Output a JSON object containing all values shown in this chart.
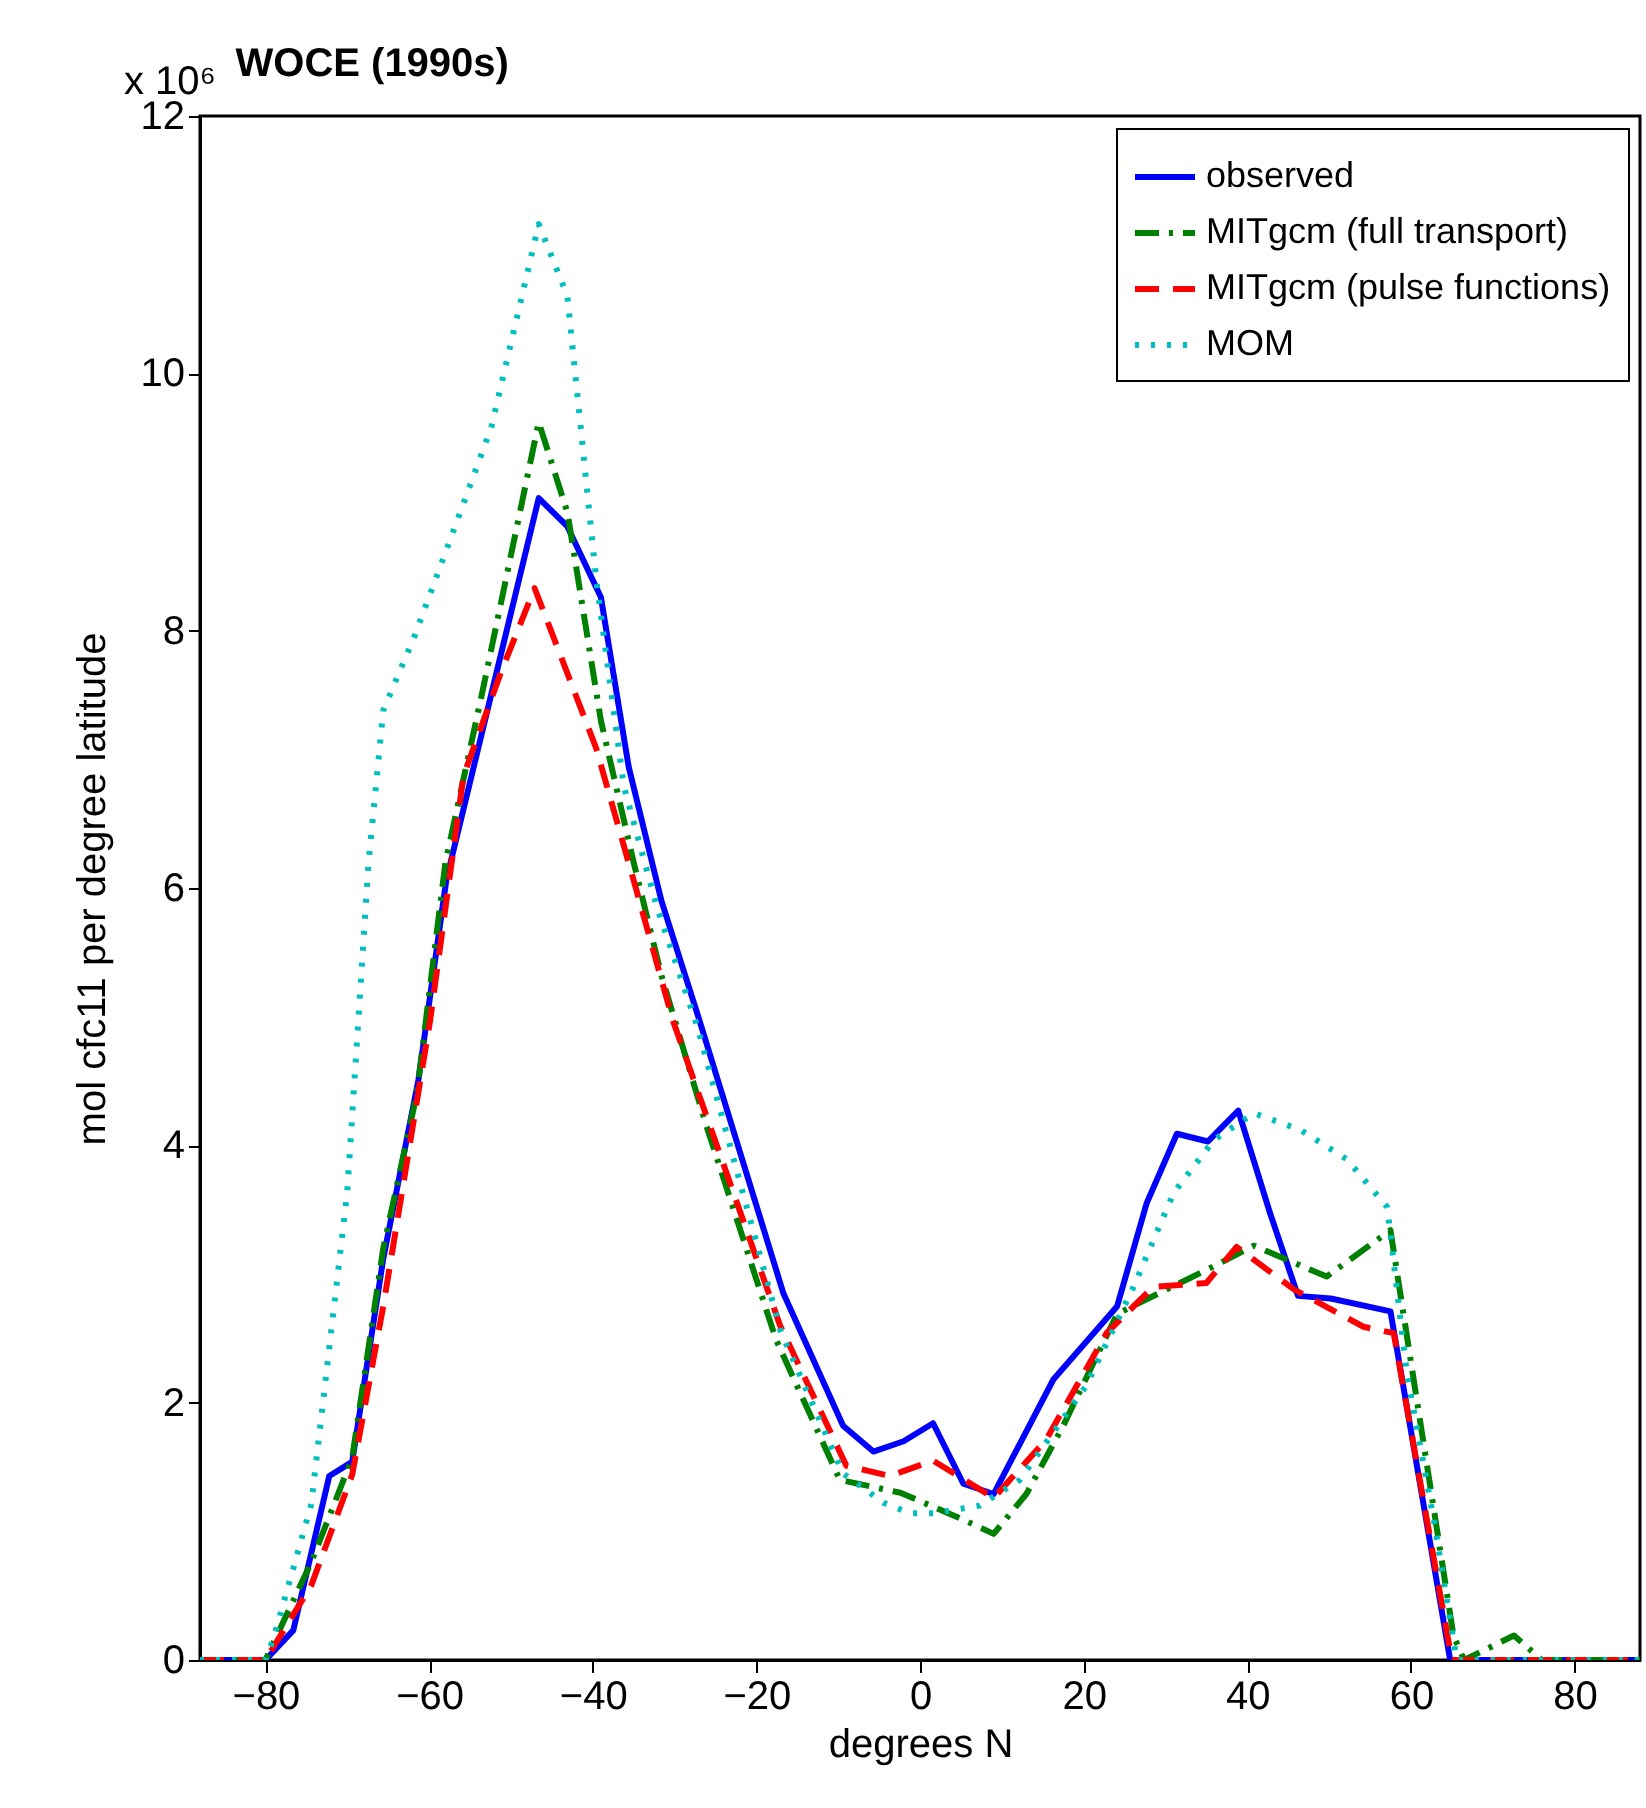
{
  "chart_data": {
    "type": "line",
    "title": "WOCE (1990s)",
    "xlabel": "degrees N",
    "ylabel": "mol cfc11 per degree latitude",
    "annotations": [
      "x 10⁶"
    ],
    "xlim": [
      -88,
      88
    ],
    "xticks": [
      -80,
      -60,
      -40,
      -20,
      0,
      20,
      40,
      60,
      80
    ],
    "ylim": [
      0,
      12
    ],
    "yticks": [
      0,
      2,
      4,
      6,
      8,
      10,
      12
    ],
    "grid": false,
    "legend": "top right",
    "marker": "none",
    "series": [
      {
        "name": "observed",
        "color": "#0000ff",
        "line_style": "solid",
        "x": [
          -88,
          -80,
          -76.6,
          -72.2,
          -69.4,
          -65.6,
          -61.3,
          -57.9,
          -46.6,
          -43.1,
          -39.0,
          -35.6,
          -31.6,
          -26.9,
          -16.7,
          -9.4,
          -5.7,
          -2.0,
          1.6,
          5.3,
          9.0,
          16.3,
          24.1,
          27.7,
          31.4,
          35.2,
          38.9,
          42.8,
          46.2,
          50.2,
          57.5,
          64.8,
          88
        ],
        "values": [
          0,
          0,
          0.23,
          1.43,
          1.54,
          3.12,
          4.51,
          6.06,
          9.03,
          8.81,
          8.26,
          6.94,
          5.9,
          4.96,
          2.85,
          1.82,
          1.62,
          1.7,
          1.84,
          1.37,
          1.29,
          2.18,
          2.75,
          3.55,
          4.09,
          4.03,
          4.27,
          3.47,
          2.83,
          2.81,
          2.71,
          0,
          0
        ]
      },
      {
        "name": "MITgcm (full transport)",
        "color": "#008000",
        "line_style": "dashdot",
        "x": [
          -88,
          -80,
          -74.4,
          -69.4,
          -65.6,
          -61.5,
          -58,
          -53.5,
          -46.6,
          -43.1,
          -39,
          -35,
          -31.6,
          -26.2,
          -17.6,
          -9.8,
          -2.4,
          5.3,
          9.0,
          13,
          17.5,
          24.1,
          35.9,
          40.8,
          44.9,
          49.7,
          57.5,
          65.2,
          66.5,
          72.6,
          76,
          88
        ],
        "values": [
          0,
          0,
          0.76,
          1.57,
          3.2,
          4.4,
          6.2,
          7.52,
          9.62,
          8.92,
          7.3,
          6.2,
          5.32,
          4.17,
          2.49,
          1.4,
          1.3,
          1.09,
          0.98,
          1.29,
          1.82,
          2.69,
          3.06,
          3.22,
          3.11,
          2.98,
          3.34,
          0.19,
          0,
          0.19,
          0,
          0
        ]
      },
      {
        "name": "MITgcm (pulse functions)",
        "color": "#ff0000",
        "line_style": "dashed",
        "x": [
          -88,
          -80,
          -74.4,
          -69.4,
          -65.6,
          -59.9,
          -55.8,
          -51.2,
          -47.1,
          -39.6,
          -35,
          -30.2,
          -17.1,
          -9,
          -3.7,
          1.6,
          9,
          15.4,
          22.8,
          28.5,
          35,
          38.7,
          45.7,
          54.2,
          57.9,
          65,
          88
        ],
        "values": [
          0,
          0,
          0.58,
          1.44,
          2.75,
          4.96,
          6.87,
          7.68,
          8.33,
          7.09,
          6.06,
          4.97,
          2.6,
          1.51,
          1.43,
          1.55,
          1.26,
          1.71,
          2.54,
          2.9,
          2.93,
          3.21,
          2.88,
          2.59,
          2.54,
          0,
          0
        ]
      },
      {
        "name": "MOM",
        "color": "#00bfbf",
        "line_style": "dotted",
        "x": [
          -88,
          -80,
          -79,
          -74.4,
          -70,
          -67.4,
          -65.6,
          -61.7,
          -57,
          -52.4,
          -46.6,
          -43.1,
          -39.6,
          -36.2,
          -32.1,
          -27.2,
          -17,
          -9.4,
          -4.4,
          -1.2,
          1.6,
          7.3,
          12.2,
          20.3,
          26.1,
          31,
          35.9,
          40.8,
          46.5,
          52.2,
          57.1,
          59.5,
          62.8,
          65.6,
          88
        ],
        "values": [
          0,
          0,
          0.17,
          1.21,
          3.64,
          6.2,
          7.38,
          7.97,
          8.78,
          9.58,
          11.16,
          10.6,
          8.41,
          6.79,
          5.84,
          4.92,
          2.55,
          1.45,
          1.22,
          1.14,
          1.14,
          1.2,
          1.4,
          2.13,
          2.9,
          3.63,
          4.04,
          4.25,
          4.12,
          3.89,
          3.52,
          2.23,
          1.09,
          0,
          0
        ]
      }
    ]
  }
}
